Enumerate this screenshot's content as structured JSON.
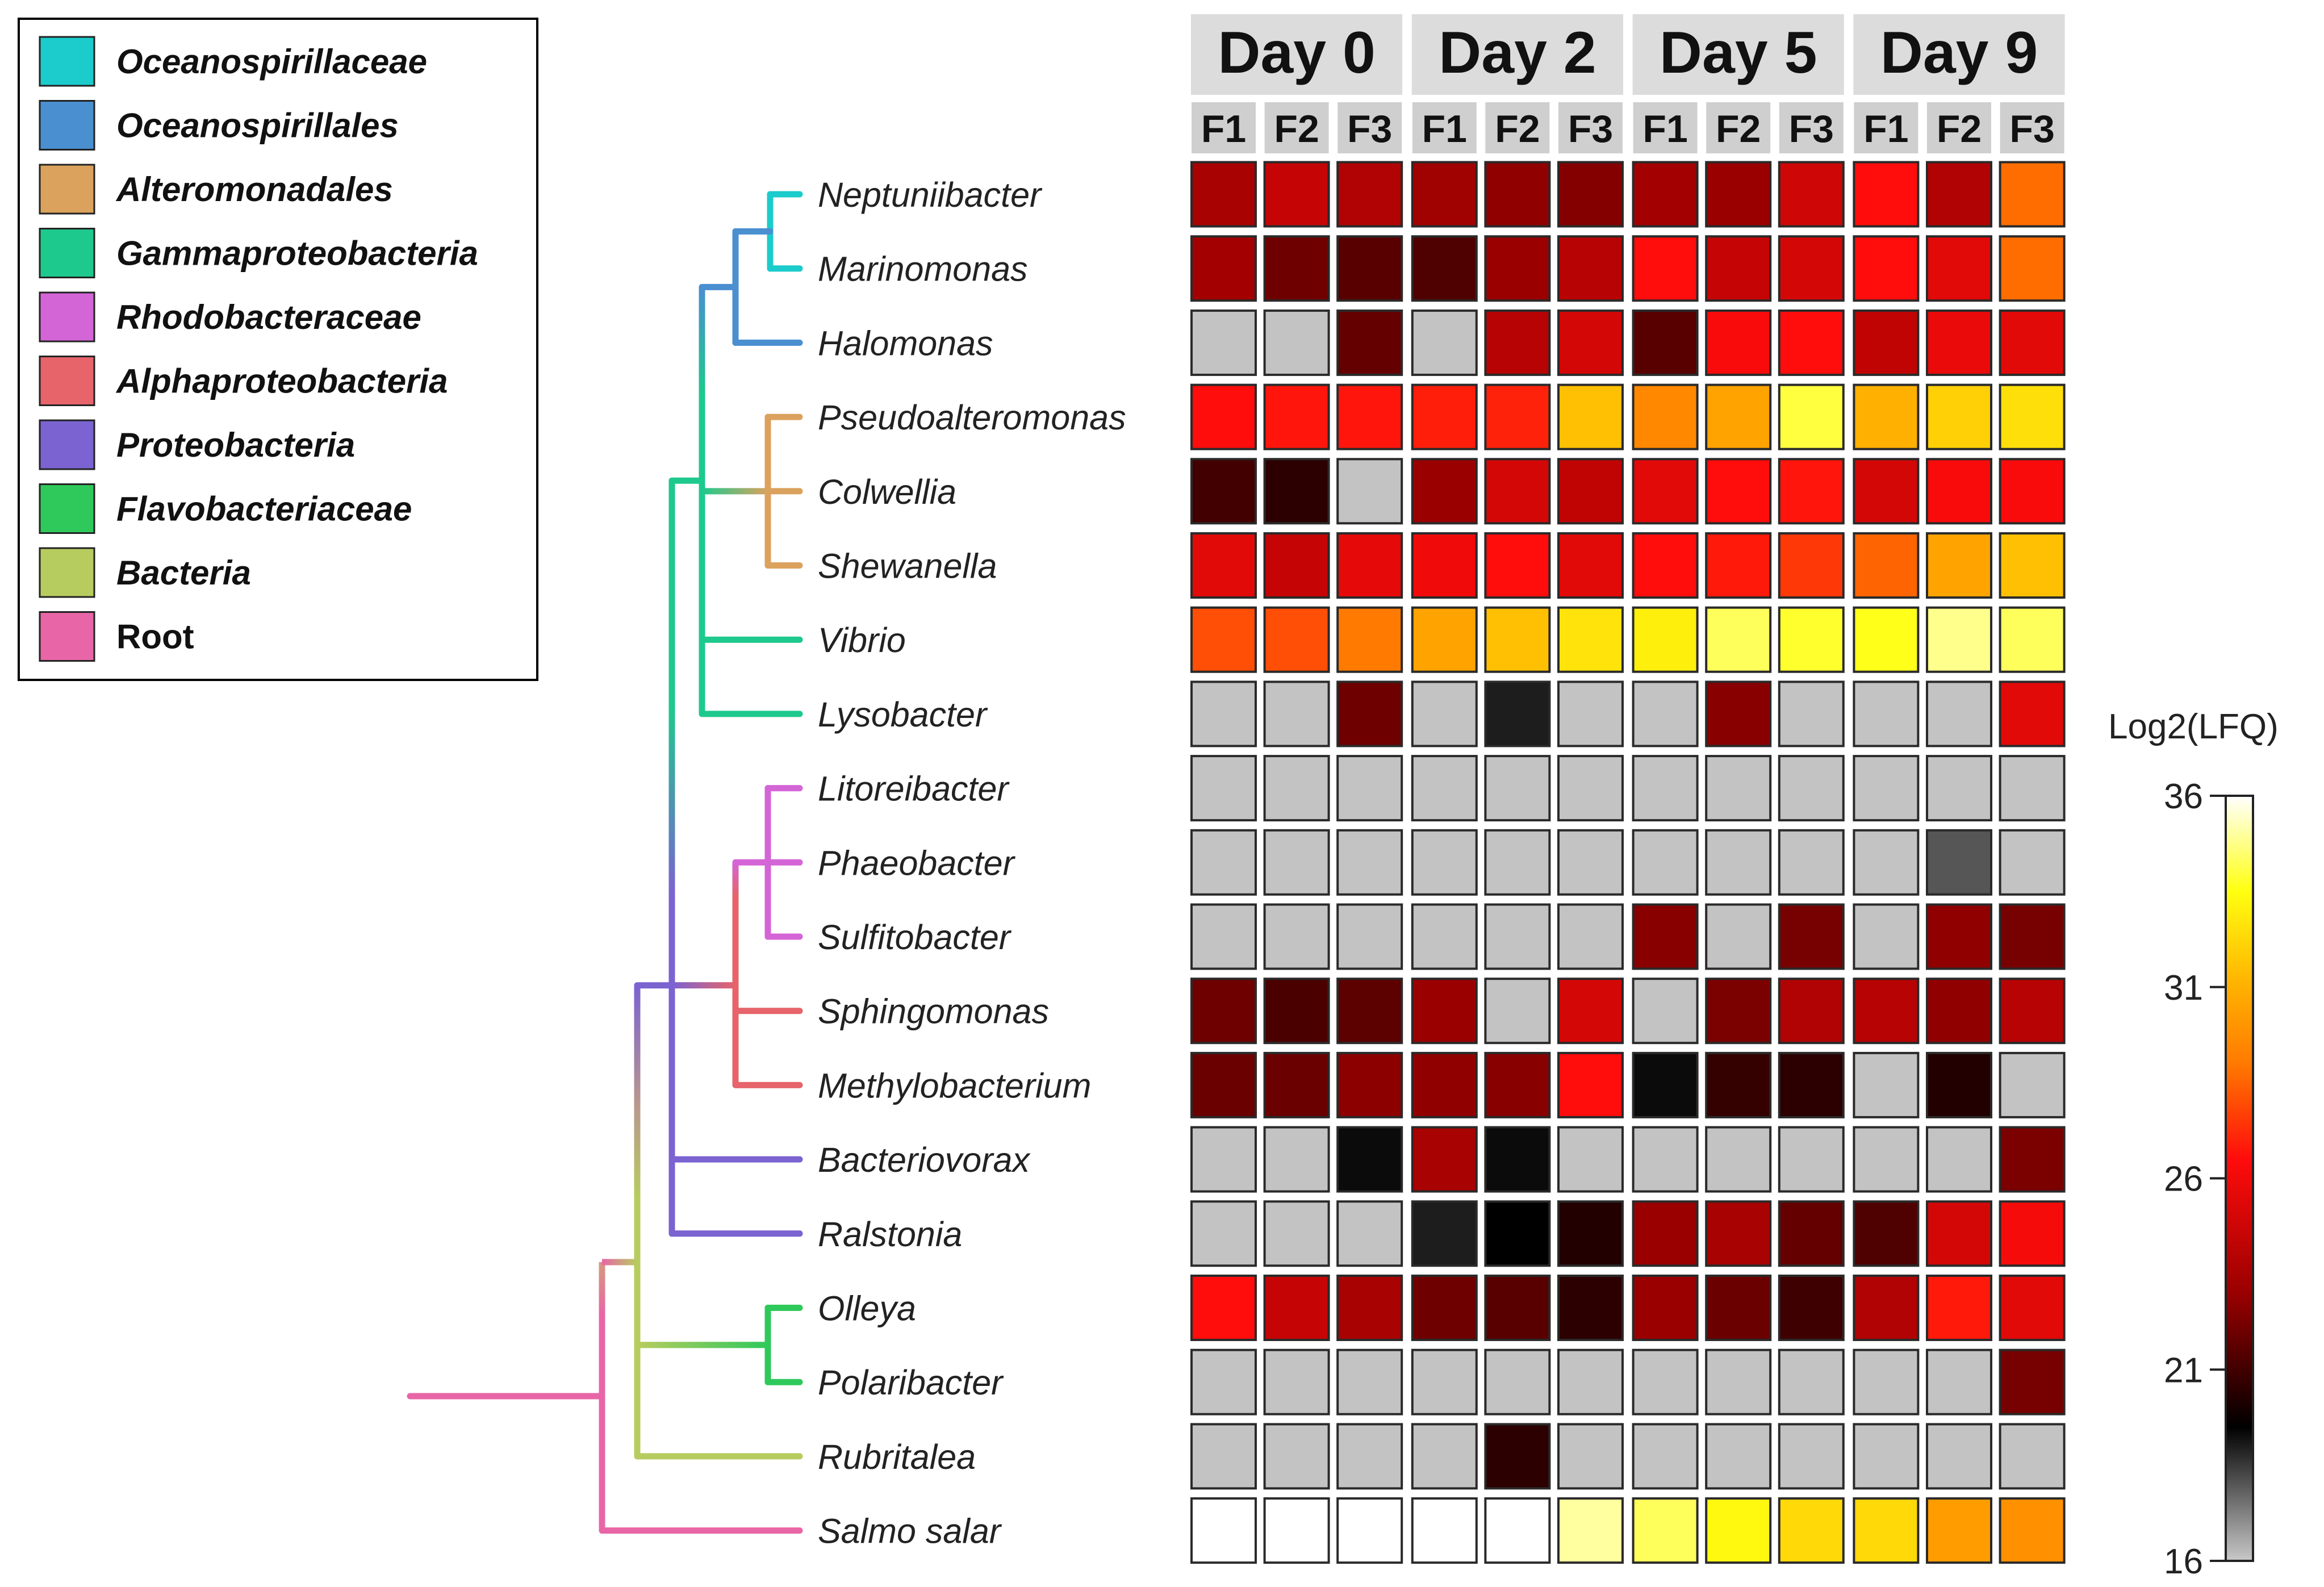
{
  "chart_data": {
    "type": "heatmap",
    "colorbar": {
      "title": "Log2(LFQ)",
      "ticks": [
        16,
        21,
        26,
        31,
        36
      ],
      "range": [
        16,
        36
      ],
      "stops": [
        {
          "v": 16,
          "c": "#c8c8c8"
        },
        {
          "v": 19.5,
          "c": "#000000"
        },
        {
          "v": 23,
          "c": "#9a0000"
        },
        {
          "v": 26.5,
          "c": "#ff0c0c"
        },
        {
          "v": 29,
          "c": "#ff7a00"
        },
        {
          "v": 31,
          "c": "#ffb000"
        },
        {
          "v": 33.5,
          "c": "#ffff10"
        },
        {
          "v": 36,
          "c": "#ffffff"
        }
      ]
    },
    "days": [
      "Day 0",
      "Day 2",
      "Day 5",
      "Day 9"
    ],
    "replicates": [
      "F1",
      "F2",
      "F3"
    ],
    "legend": [
      {
        "label": "Oceanospirillaceae",
        "color": "#1ccbcb"
      },
      {
        "label": "Oceanospirillales",
        "color": "#4a8fd0"
      },
      {
        "label": "Alteromonadales",
        "color": "#dba25e"
      },
      {
        "label": "Gammaproteobacteria",
        "color": "#1ec98d"
      },
      {
        "label": "Rhodobacteraceae",
        "color": "#d465d6"
      },
      {
        "label": "Alphaproteobacteria",
        "color": "#e6646a"
      },
      {
        "label": "Proteobacteria",
        "color": "#7b63d1"
      },
      {
        "label": "Flavobacteriaceae",
        "color": "#2fc95b"
      },
      {
        "label": "Bacteria",
        "color": "#b7cc5e"
      },
      {
        "label": "Root",
        "color": "#e866a7"
      }
    ],
    "rows": [
      {
        "taxon": "Neptuniibacter",
        "values": [
          23.5,
          24.5,
          23.8,
          23.2,
          22.8,
          22.5,
          23.3,
          23.0,
          24.8,
          26.5,
          23.8,
          28.7
        ]
      },
      {
        "taxon": "Marinomonas",
        "values": [
          23.3,
          22.0,
          21.5,
          21.3,
          23.0,
          24.0,
          26.5,
          24.5,
          25.0,
          26.5,
          25.5,
          28.7
        ]
      },
      {
        "taxon": "Halomonas",
        "values": [
          null,
          null,
          21.8,
          null,
          24.0,
          25.0,
          21.5,
          26.3,
          26.5,
          24.3,
          25.8,
          25.5
        ]
      },
      {
        "taxon": "Pseudoalteromonas",
        "values": [
          26.5,
          26.7,
          26.7,
          26.9,
          27.0,
          31.5,
          29.5,
          30.5,
          34.0,
          31.0,
          32.0,
          32.5
        ]
      },
      {
        "taxon": "Colwellia",
        "values": [
          21.0,
          20.5,
          null,
          23.0,
          25.0,
          24.3,
          25.5,
          26.5,
          26.7,
          25.0,
          26.3,
          26.3
        ]
      },
      {
        "taxon": "Shewanella",
        "values": [
          25.5,
          24.5,
          25.6,
          26.0,
          26.5,
          25.5,
          26.5,
          26.8,
          27.5,
          28.5,
          30.5,
          31.5
        ]
      },
      {
        "taxon": "Vibrio",
        "values": [
          28.0,
          28.0,
          29.0,
          30.5,
          31.5,
          32.6,
          33.0,
          34.3,
          33.8,
          33.6,
          34.8,
          34.3
        ]
      },
      {
        "taxon": "Lysobacter",
        "values": [
          null,
          null,
          22.0,
          null,
          19.0,
          null,
          null,
          22.6,
          null,
          null,
          null,
          25.5
        ]
      },
      {
        "taxon": "Litoreibacter",
        "values": [
          null,
          null,
          null,
          null,
          null,
          null,
          null,
          null,
          null,
          null,
          null,
          null
        ]
      },
      {
        "taxon": "Phaeobacter",
        "values": [
          null,
          null,
          null,
          null,
          null,
          null,
          null,
          null,
          null,
          null,
          18.0,
          null
        ]
      },
      {
        "taxon": "Sulfitobacter",
        "values": [
          null,
          null,
          null,
          null,
          null,
          null,
          22.6,
          null,
          22.2,
          null,
          22.8,
          22.2
        ]
      },
      {
        "taxon": "Sphingomonas",
        "values": [
          22.0,
          21.2,
          21.6,
          23.0,
          null,
          25.0,
          null,
          22.3,
          23.8,
          24.0,
          22.8,
          24.0
        ]
      },
      {
        "taxon": "Methylobacterium",
        "values": [
          21.9,
          21.9,
          22.7,
          22.8,
          22.6,
          26.5,
          19.3,
          20.7,
          20.5,
          null,
          20.3,
          null
        ]
      },
      {
        "taxon": "Bacteriovorax",
        "values": [
          null,
          null,
          19.3,
          23.5,
          19.3,
          null,
          null,
          null,
          null,
          null,
          null,
          22.3
        ]
      },
      {
        "taxon": "Ralstonia",
        "values": [
          null,
          null,
          null,
          19.0,
          19.5,
          20.3,
          23.0,
          23.5,
          21.8,
          21.3,
          25.0,
          26.2
        ]
      },
      {
        "taxon": "Olleya",
        "values": [
          26.5,
          24.5,
          23.5,
          22.0,
          21.5,
          20.5,
          23.0,
          21.9,
          20.9,
          23.8,
          26.8,
          25.5
        ]
      },
      {
        "taxon": "Polaribacter",
        "values": [
          null,
          null,
          null,
          null,
          null,
          null,
          null,
          null,
          null,
          null,
          null,
          22.2
        ]
      },
      {
        "taxon": "Rubritalea",
        "values": [
          null,
          null,
          null,
          null,
          20.5,
          null,
          null,
          null,
          null,
          null,
          null,
          null
        ]
      },
      {
        "taxon": "Salmo salar",
        "values": [
          36,
          36,
          36,
          36,
          36,
          35.0,
          34.3,
          33.3,
          32.3,
          32.3,
          30.3,
          29.8
        ]
      }
    ],
    "missing_color": "#c3c3c3"
  }
}
